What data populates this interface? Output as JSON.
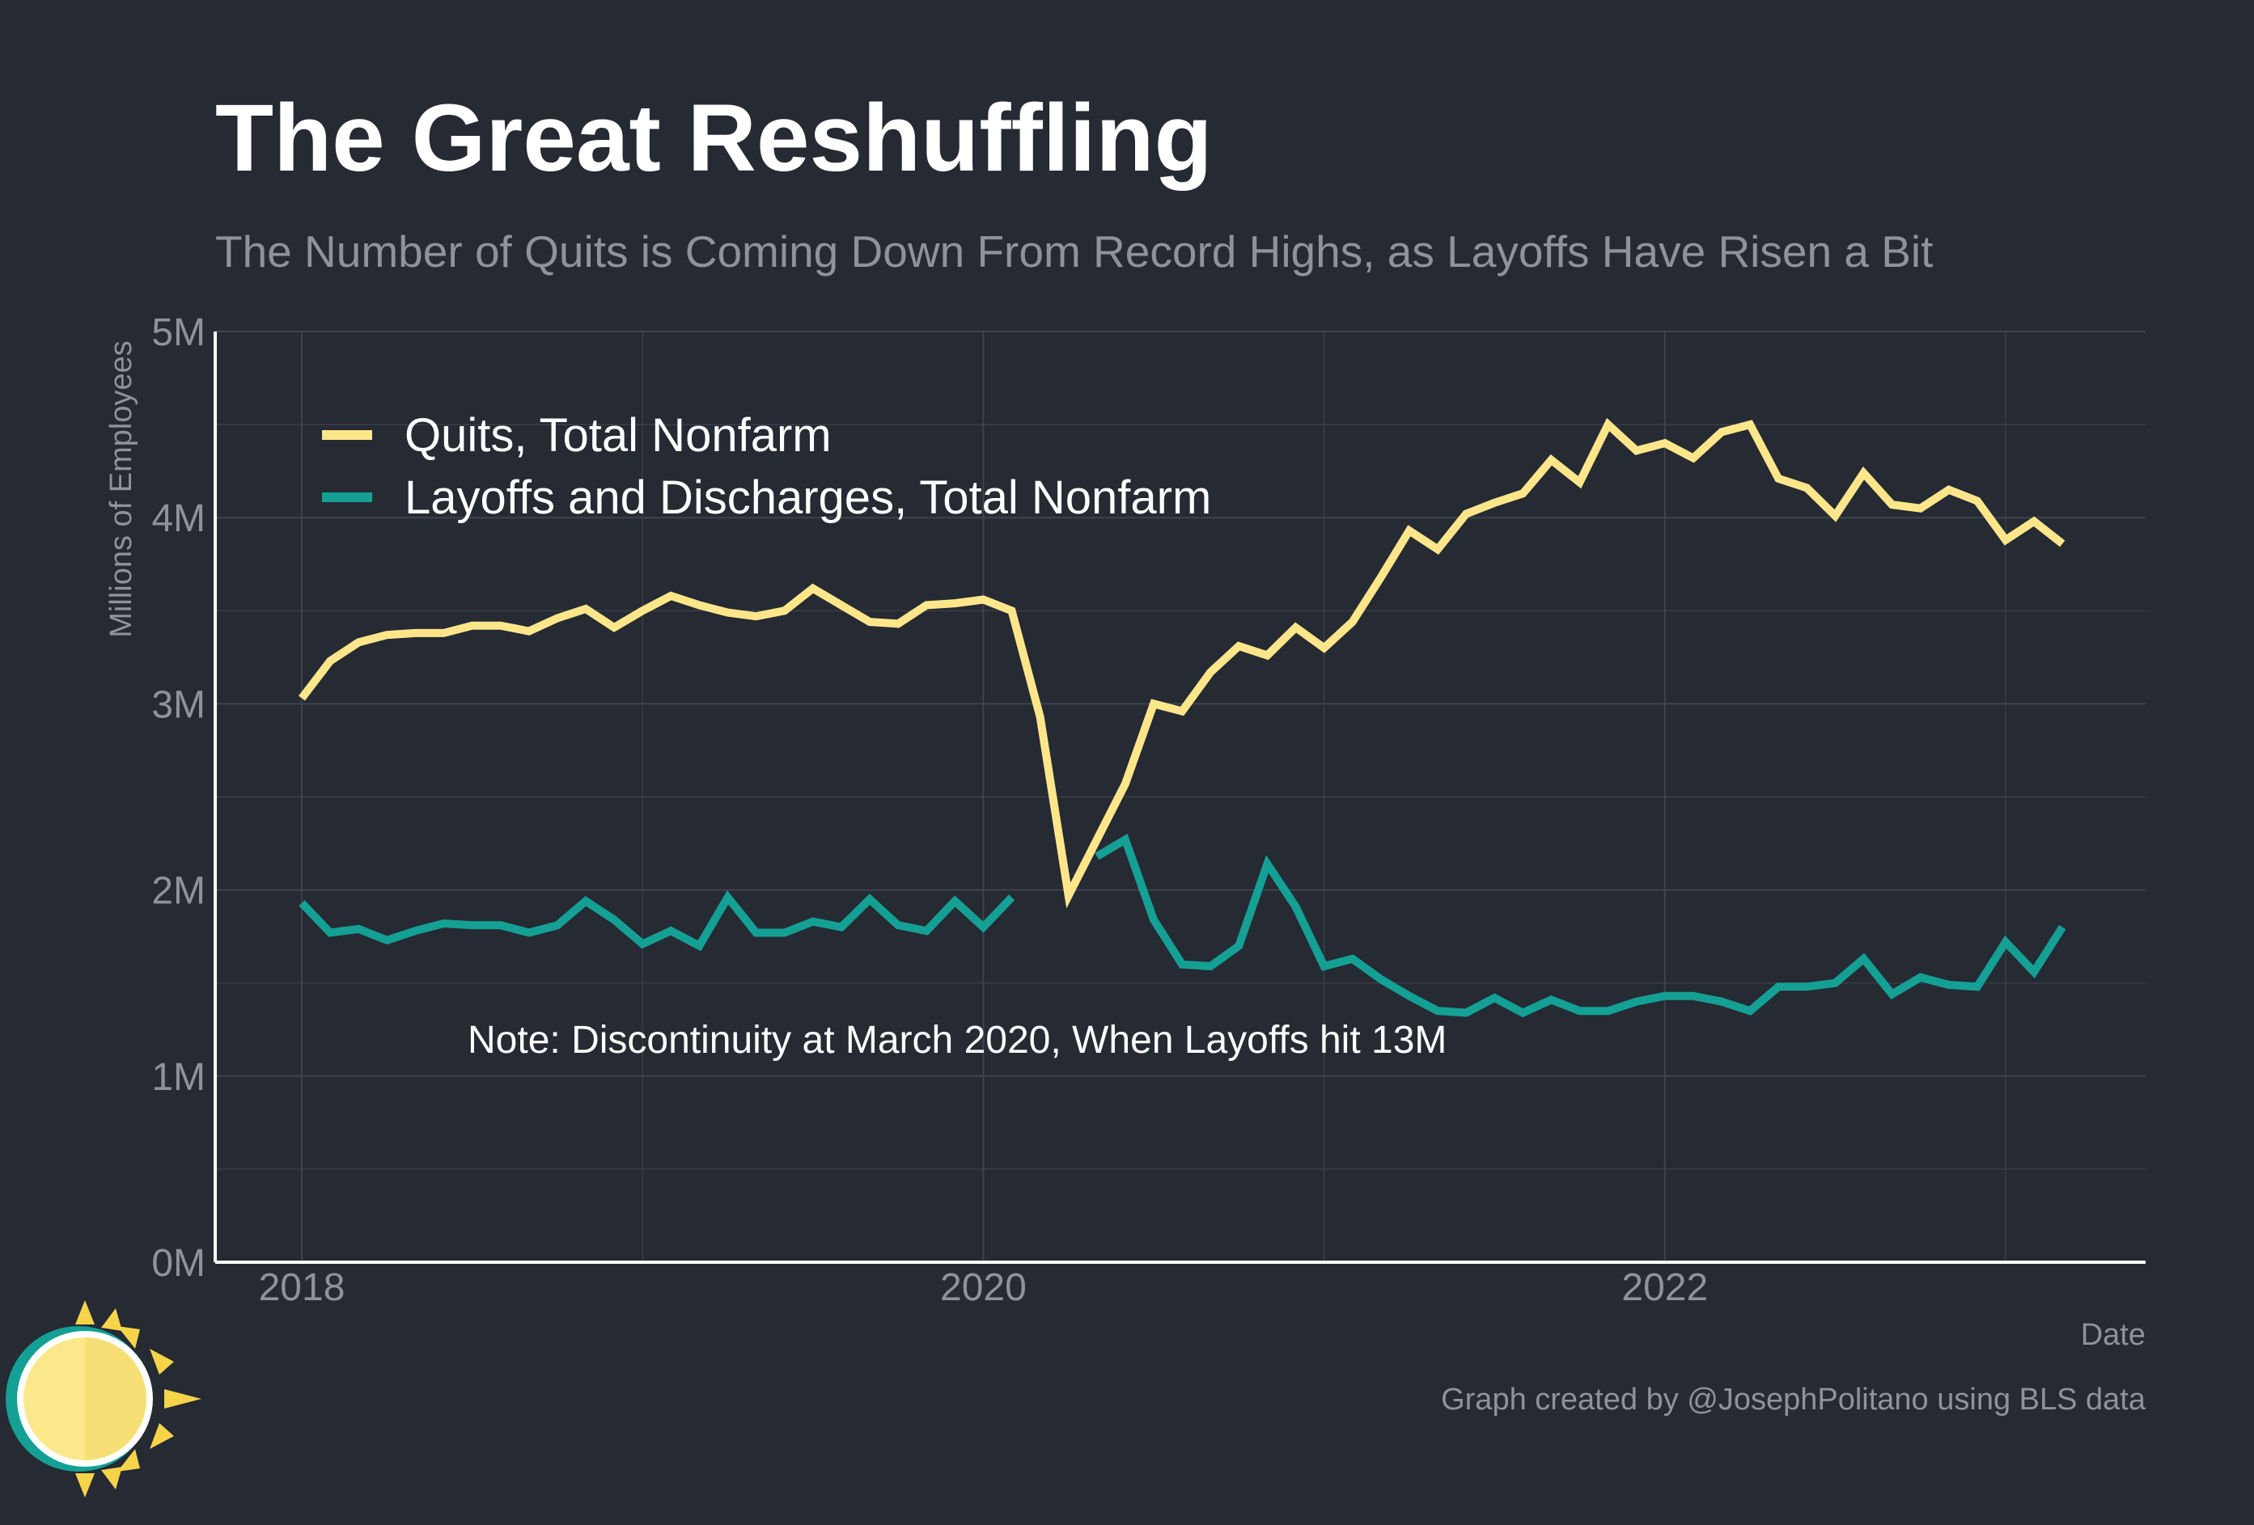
{
  "title": "The Great Reshuffling",
  "subtitle": "The Number of Quits is Coming Down From Record Highs, as Layoffs Have Risen a Bit",
  "caption": "Graph created by @JosephPolitano using BLS data",
  "note": "Note: Discontinuity at March 2020, When Layoffs hit 13M",
  "colors": {
    "background": "#252a33",
    "quits": "#fde68a",
    "layoffs": "#14a094",
    "grid": "#3e434c",
    "axis": "#ffffff",
    "muted_text": "#8e929a"
  },
  "logo": {
    "icon": "sun-icon"
  },
  "chart_data": {
    "type": "line",
    "title": "The Great Reshuffling",
    "subtitle": "The Number of Quits is Coming Down From Record Highs, as Layoffs Have Risen a Bit",
    "xlabel": "Date",
    "ylabel": "Millions of Employees",
    "x_ticks": [
      "2018",
      "2020",
      "2022"
    ],
    "y_ticks": [
      "0M",
      "1M",
      "2M",
      "3M",
      "4M",
      "5M"
    ],
    "ylim": [
      0,
      5
    ],
    "grid": true,
    "legend_position": "top-left",
    "x_range": [
      "2017-10",
      "2023-06"
    ],
    "x_start": "2018-01",
    "frequency": "monthly",
    "series": [
      {
        "name": "Quits, Total Nonfarm",
        "color": "#fde68a",
        "values": [
          3.03,
          3.23,
          3.33,
          3.37,
          3.38,
          3.38,
          3.42,
          3.42,
          3.39,
          3.46,
          3.51,
          3.41,
          3.5,
          3.58,
          3.53,
          3.49,
          3.47,
          3.5,
          3.62,
          3.53,
          3.44,
          3.43,
          3.53,
          3.54,
          3.56,
          3.5,
          2.93,
          1.97,
          2.27,
          2.57,
          3.0,
          2.96,
          3.17,
          3.31,
          3.26,
          3.41,
          3.3,
          3.44,
          3.68,
          3.93,
          3.83,
          4.02,
          4.08,
          4.13,
          4.31,
          4.19,
          4.5,
          4.36,
          4.4,
          4.32,
          4.46,
          4.5,
          4.21,
          4.16,
          4.01,
          4.24,
          4.07,
          4.05,
          4.15,
          4.09,
          3.88,
          3.98,
          3.86
        ]
      },
      {
        "name": "Layoffs and Discharges, Total Nonfarm",
        "color": "#14a094",
        "values": [
          1.93,
          1.77,
          1.79,
          1.73,
          1.78,
          1.82,
          1.81,
          1.81,
          1.77,
          1.81,
          1.94,
          1.84,
          1.71,
          1.78,
          1.7,
          1.96,
          1.77,
          1.77,
          1.83,
          1.8,
          1.95,
          1.81,
          1.78,
          1.94,
          1.8,
          1.96,
          null,
          null,
          2.18,
          2.27,
          1.84,
          1.6,
          1.59,
          1.7,
          2.14,
          1.91,
          1.59,
          1.63,
          1.52,
          1.43,
          1.35,
          1.34,
          1.42,
          1.34,
          1.41,
          1.35,
          1.35,
          1.4,
          1.43,
          1.43,
          1.4,
          1.35,
          1.48,
          1.48,
          1.5,
          1.63,
          1.44,
          1.53,
          1.49,
          1.48,
          1.72,
          1.56,
          1.8
        ]
      }
    ]
  }
}
